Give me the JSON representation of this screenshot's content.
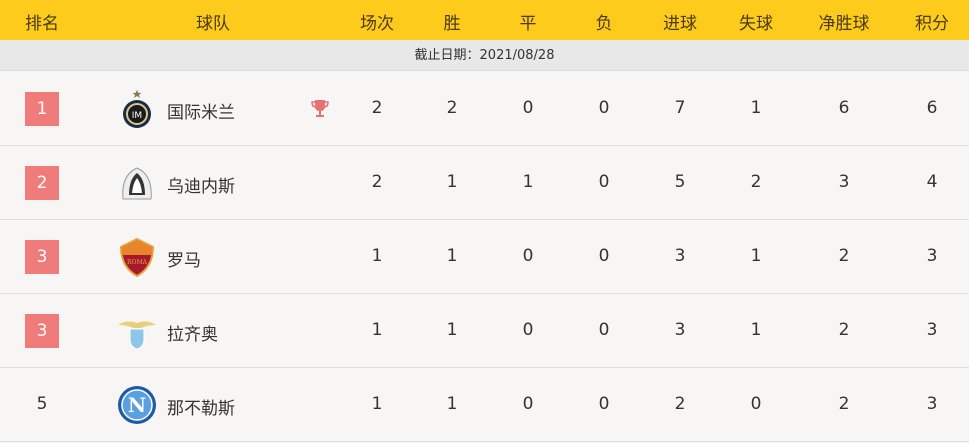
{
  "header": {
    "columns": [
      "排名",
      "球队",
      "场次",
      "胜",
      "平",
      "负",
      "进球",
      "失球",
      "净胜球",
      "积分"
    ]
  },
  "date_label": "截止日期：2021/08/28",
  "colors": {
    "header": "#fccb1b",
    "rank_badge": "#f07b7b",
    "trophy": "#e87070"
  },
  "rows": [
    {
      "rank": "1",
      "team": "国际米兰",
      "logo": "inter-logo",
      "trophy": true,
      "played": "2",
      "win": "2",
      "draw": "0",
      "loss": "0",
      "gf": "7",
      "ga": "1",
      "gd": "6",
      "pts": "6",
      "badge": true
    },
    {
      "rank": "2",
      "team": "乌迪内斯",
      "logo": "udinese-logo",
      "trophy": false,
      "played": "2",
      "win": "1",
      "draw": "1",
      "loss": "0",
      "gf": "5",
      "ga": "2",
      "gd": "3",
      "pts": "4",
      "badge": true
    },
    {
      "rank": "3",
      "team": "罗马",
      "logo": "roma-logo",
      "trophy": false,
      "played": "1",
      "win": "1",
      "draw": "0",
      "loss": "0",
      "gf": "3",
      "ga": "1",
      "gd": "2",
      "pts": "3",
      "badge": true
    },
    {
      "rank": "3",
      "team": "拉齐奥",
      "logo": "lazio-logo",
      "trophy": false,
      "played": "1",
      "win": "1",
      "draw": "0",
      "loss": "0",
      "gf": "3",
      "ga": "1",
      "gd": "2",
      "pts": "3",
      "badge": true
    },
    {
      "rank": "5",
      "team": "那不勒斯",
      "logo": "napoli-logo",
      "trophy": false,
      "played": "1",
      "win": "1",
      "draw": "0",
      "loss": "0",
      "gf": "2",
      "ga": "0",
      "gd": "2",
      "pts": "3",
      "badge": false
    }
  ]
}
